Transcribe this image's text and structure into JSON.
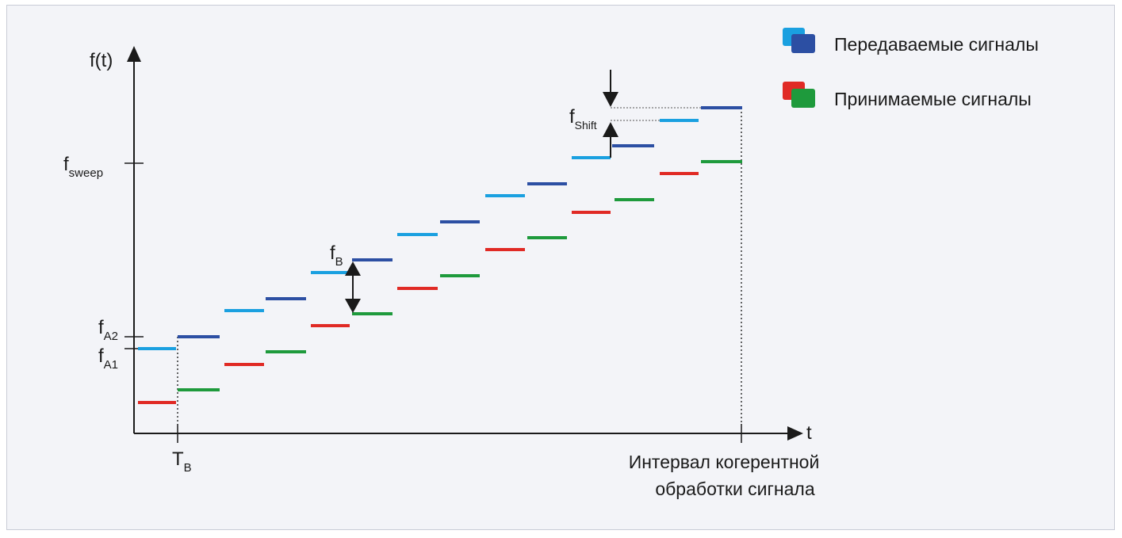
{
  "legend": {
    "transmitted": "Передаваемые сигналы",
    "received": "Принимаемые сигналы"
  },
  "axes": {
    "y_label": "f(t)",
    "x_label": "t"
  },
  "labels": {
    "f_sweep_main": "f",
    "f_sweep_sub": "sweep",
    "f_a2_main": "f",
    "f_a2_sub": "A2",
    "f_a1_main": "f",
    "f_a1_sub": "A1",
    "f_b_main": "f",
    "f_b_sub": "B",
    "f_shift_main": "f",
    "f_shift_sub": "Shift",
    "t_b_main": "T",
    "t_b_sub": "B",
    "interval_line1": "Интервал когерентной",
    "interval_line2": "обработки сигнала"
  },
  "colors": {
    "tx_light": "#1aa0e0",
    "tx_dark": "#2c4fa3",
    "rx_red": "#e02a25",
    "rx_green": "#1e9a3c",
    "axis": "#1a1a1a"
  }
}
